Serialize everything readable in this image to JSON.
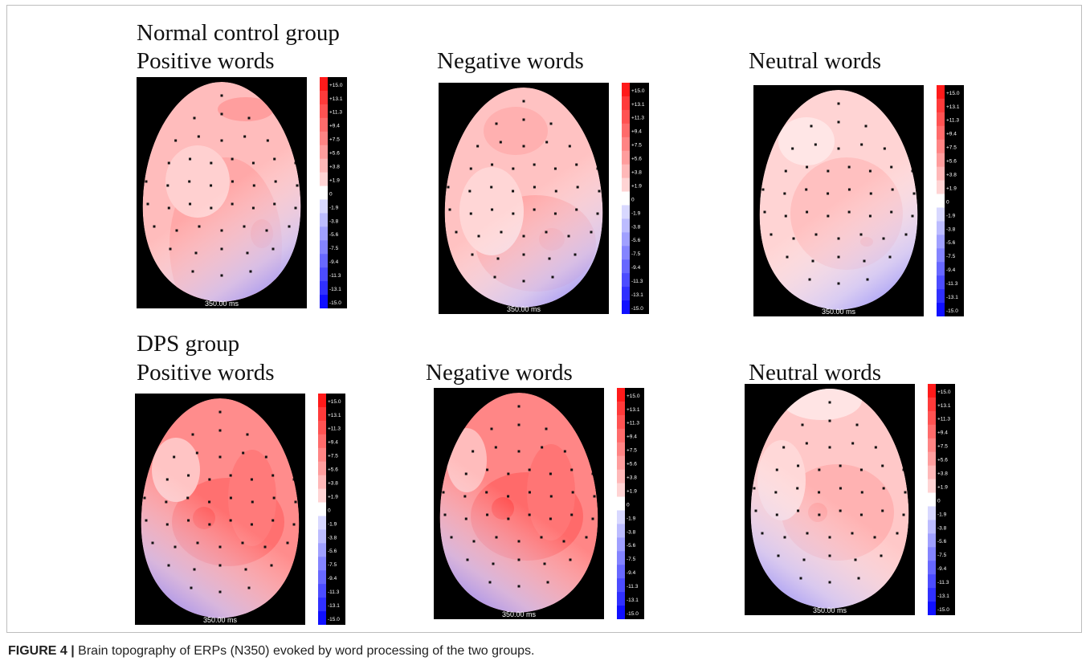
{
  "figure": {
    "caption_label": "FIGURE 4 |",
    "caption_text": " Brain topography of ERPs (N350) evoked by word processing of the two groups."
  },
  "groups": [
    {
      "title": "Normal control group",
      "conditions": [
        {
          "label": "Positive words",
          "time": "350.00 ms",
          "variant": "pos_nc"
        },
        {
          "label": "Negative words",
          "time": "350.00 ms",
          "variant": "neg_nc"
        },
        {
          "label": "Neutral words",
          "time": "350.00 ms",
          "variant": "neu_nc"
        }
      ]
    },
    {
      "title": "DPS group",
      "conditions": [
        {
          "label": "Positive words",
          "time": "350.00 ms",
          "variant": "pos_dps"
        },
        {
          "label": "Negative words",
          "time": "350.00 ms",
          "variant": "neg_dps"
        },
        {
          "label": "Neutral words",
          "time": "350.00 ms",
          "variant": "neu_dps"
        }
      ]
    }
  ],
  "colorbar": {
    "ticks": [
      "+15.0",
      "+13.1",
      "+11.3",
      "+9.4",
      "+7.5",
      "+5.6",
      "+3.8",
      "+1.9",
      "0",
      "-1.9",
      "-3.8",
      "-5.6",
      "-7.5",
      "-9.4",
      "-11.3",
      "-13.1",
      "-15.0"
    ],
    "colors": [
      "#ff1a1a",
      "#ff3a3a",
      "#ff5252",
      "#ff6b6b",
      "#ff8484",
      "#ff9d9d",
      "#ffb8b8",
      "#ffd4d4",
      "#ffffff",
      "#d8d8ff",
      "#bcbcff",
      "#a0a0ff",
      "#8484ff",
      "#6868ff",
      "#4c4cff",
      "#3030ff",
      "#1010ff"
    ]
  }
}
